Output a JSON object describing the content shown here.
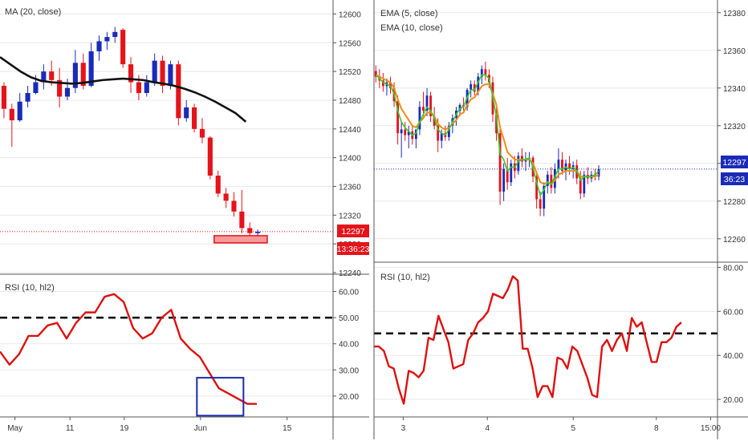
{
  "colors": {
    "bull": "#1a2bb8",
    "bear": "#e5131a",
    "ma": "#111111",
    "ema_fast": "#33cc33",
    "ema_slow": "#f08c1a",
    "rsi": "#dd1111",
    "price_line_left": "#e5131a",
    "price_line_right": "#1a2bb8",
    "highlight_box": "#1a2ba8",
    "grid": "#e8e8e8",
    "axis_text": "#333333"
  },
  "chart_data": [
    {
      "type": "candlestick",
      "panel": "left-price",
      "indicator_label": "MA (20, close)",
      "y_ticks": [
        "12600",
        "12560",
        "12520",
        "12480",
        "12440",
        "12400",
        "12360",
        "12320",
        "12280",
        "12240"
      ],
      "ylim": [
        12240,
        12615
      ],
      "xlim": [
        0,
        42
      ],
      "candles": [
        {
          "o": 12500,
          "h": 12505,
          "l": 12455,
          "c": 12468
        },
        {
          "o": 12468,
          "h": 12475,
          "l": 12415,
          "c": 12452
        },
        {
          "o": 12452,
          "h": 12490,
          "l": 12450,
          "c": 12478
        },
        {
          "o": 12478,
          "h": 12500,
          "l": 12470,
          "c": 12490
        },
        {
          "o": 12490,
          "h": 12515,
          "l": 12488,
          "c": 12505
        },
        {
          "o": 12505,
          "h": 12530,
          "l": 12495,
          "c": 12520
        },
        {
          "o": 12520,
          "h": 12535,
          "l": 12500,
          "c": 12508
        },
        {
          "o": 12508,
          "h": 12525,
          "l": 12470,
          "c": 12485
        },
        {
          "o": 12485,
          "h": 12510,
          "l": 12480,
          "c": 12497
        },
        {
          "o": 12497,
          "h": 12550,
          "l": 12490,
          "c": 12532
        },
        {
          "o": 12532,
          "h": 12545,
          "l": 12495,
          "c": 12500
        },
        {
          "o": 12500,
          "h": 12560,
          "l": 12498,
          "c": 12548
        },
        {
          "o": 12548,
          "h": 12570,
          "l": 12535,
          "c": 12562
        },
        {
          "o": 12562,
          "h": 12575,
          "l": 12550,
          "c": 12568
        },
        {
          "o": 12568,
          "h": 12582,
          "l": 12560,
          "c": 12575
        },
        {
          "o": 12578,
          "h": 12580,
          "l": 12525,
          "c": 12530
        },
        {
          "o": 12530,
          "h": 12540,
          "l": 12490,
          "c": 12505
        },
        {
          "o": 12505,
          "h": 12515,
          "l": 12480,
          "c": 12490
        },
        {
          "o": 12490,
          "h": 12515,
          "l": 12485,
          "c": 12505
        },
        {
          "o": 12505,
          "h": 12545,
          "l": 12500,
          "c": 12535
        },
        {
          "o": 12535,
          "h": 12542,
          "l": 12490,
          "c": 12500
        },
        {
          "o": 12500,
          "h": 12535,
          "l": 12495,
          "c": 12530
        },
        {
          "o": 12530,
          "h": 12535,
          "l": 12445,
          "c": 12455
        },
        {
          "o": 12455,
          "h": 12480,
          "l": 12450,
          "c": 12470
        },
        {
          "o": 12470,
          "h": 12475,
          "l": 12435,
          "c": 12440
        },
        {
          "o": 12440,
          "h": 12455,
          "l": 12420,
          "c": 12428
        },
        {
          "o": 12428,
          "h": 12430,
          "l": 12370,
          "c": 12375
        },
        {
          "o": 12375,
          "h": 12382,
          "l": 12345,
          "c": 12350
        },
        {
          "o": 12350,
          "h": 12358,
          "l": 12330,
          "c": 12340
        },
        {
          "o": 12340,
          "h": 12352,
          "l": 12318,
          "c": 12325
        },
        {
          "o": 12325,
          "h": 12355,
          "l": 12295,
          "c": 12302
        },
        {
          "o": 12302,
          "h": 12310,
          "l": 12283,
          "c": 12295
        },
        {
          "o": 12295,
          "h": 12300,
          "l": 12290,
          "c": 12297
        }
      ],
      "ma": [
        12540,
        12530,
        12520,
        12512,
        12507,
        12505,
        12504,
        12503,
        12504,
        12506,
        12508,
        12509,
        12510,
        12509,
        12508,
        12505,
        12503,
        12500,
        12496,
        12491,
        12485,
        12478,
        12470,
        12462,
        12450
      ],
      "last_price": "12297",
      "countdown": "13:36:23"
    },
    {
      "type": "line",
      "panel": "left-rsi",
      "indicator_label": "RSI (10, hl2)",
      "y_ticks": [
        "60.00",
        "50.00",
        "40.00",
        "30.00",
        "20.00"
      ],
      "ylim": [
        12,
        66
      ],
      "level": 50,
      "values": [
        37,
        32,
        36,
        43,
        43,
        47,
        48,
        42,
        48,
        52,
        52,
        58,
        59,
        56,
        46,
        42,
        44,
        50,
        53,
        42,
        38,
        35,
        29,
        23,
        21,
        19,
        17,
        17
      ],
      "x_ticks": [
        "May",
        "11",
        "19",
        "Jun",
        "15"
      ]
    },
    {
      "type": "candlestick",
      "panel": "right-price",
      "indicator_label_1": "EMA (5, close)",
      "indicator_label_2": "EMA (10, close)",
      "y_ticks": [
        "12380",
        "12360",
        "12340",
        "12320",
        "12300",
        "12280",
        "12260"
      ],
      "ylim": [
        12248,
        12385
      ],
      "xlim": [
        0,
        94
      ],
      "candles": [
        {
          "o": 12349,
          "h": 12352,
          "l": 12343,
          "c": 12346
        },
        {
          "o": 12346,
          "h": 12350,
          "l": 12340,
          "c": 12344
        },
        {
          "o": 12344,
          "h": 12348,
          "l": 12338,
          "c": 12341
        },
        {
          "o": 12341,
          "h": 12345,
          "l": 12336,
          "c": 12343
        },
        {
          "o": 12343,
          "h": 12346,
          "l": 12337,
          "c": 12340
        },
        {
          "o": 12340,
          "h": 12343,
          "l": 12330,
          "c": 12333
        },
        {
          "o": 12333,
          "h": 12336,
          "l": 12310,
          "c": 12316
        },
        {
          "o": 12316,
          "h": 12322,
          "l": 12303,
          "c": 12318
        },
        {
          "o": 12318,
          "h": 12322,
          "l": 12312,
          "c": 12315
        },
        {
          "o": 12315,
          "h": 12320,
          "l": 12308,
          "c": 12317
        },
        {
          "o": 12317,
          "h": 12320,
          "l": 12310,
          "c": 12313
        },
        {
          "o": 12313,
          "h": 12318,
          "l": 12308,
          "c": 12318
        },
        {
          "o": 12318,
          "h": 12333,
          "l": 12315,
          "c": 12330
        },
        {
          "o": 12330,
          "h": 12338,
          "l": 12325,
          "c": 12328
        },
        {
          "o": 12328,
          "h": 12340,
          "l": 12325,
          "c": 12336
        },
        {
          "o": 12336,
          "h": 12338,
          "l": 12322,
          "c": 12325
        },
        {
          "o": 12325,
          "h": 12330,
          "l": 12318,
          "c": 12320
        },
        {
          "o": 12320,
          "h": 12324,
          "l": 12306,
          "c": 12312
        },
        {
          "o": 12312,
          "h": 12318,
          "l": 12308,
          "c": 12316
        },
        {
          "o": 12316,
          "h": 12320,
          "l": 12312,
          "c": 12314
        },
        {
          "o": 12314,
          "h": 12322,
          "l": 12312,
          "c": 12320
        },
        {
          "o": 12320,
          "h": 12326,
          "l": 12316,
          "c": 12324
        },
        {
          "o": 12324,
          "h": 12330,
          "l": 12320,
          "c": 12328
        },
        {
          "o": 12328,
          "h": 12332,
          "l": 12325,
          "c": 12331
        },
        {
          "o": 12331,
          "h": 12335,
          "l": 12328,
          "c": 12330
        },
        {
          "o": 12330,
          "h": 12340,
          "l": 12328,
          "c": 12339
        },
        {
          "o": 12339,
          "h": 12344,
          "l": 12335,
          "c": 12342
        },
        {
          "o": 12342,
          "h": 12344,
          "l": 12336,
          "c": 12338
        },
        {
          "o": 12338,
          "h": 12348,
          "l": 12336,
          "c": 12346
        },
        {
          "o": 12346,
          "h": 12352,
          "l": 12342,
          "c": 12350
        },
        {
          "o": 12350,
          "h": 12354,
          "l": 12344,
          "c": 12347
        },
        {
          "o": 12347,
          "h": 12350,
          "l": 12340,
          "c": 12343
        },
        {
          "o": 12343,
          "h": 12346,
          "l": 12322,
          "c": 12326
        },
        {
          "o": 12326,
          "h": 12330,
          "l": 12312,
          "c": 12316
        },
        {
          "o": 12316,
          "h": 12320,
          "l": 12278,
          "c": 12285
        },
        {
          "o": 12285,
          "h": 12300,
          "l": 12280,
          "c": 12297
        },
        {
          "o": 12297,
          "h": 12303,
          "l": 12286,
          "c": 12290
        },
        {
          "o": 12290,
          "h": 12302,
          "l": 12288,
          "c": 12300
        },
        {
          "o": 12300,
          "h": 12304,
          "l": 12292,
          "c": 12296
        },
        {
          "o": 12296,
          "h": 12306,
          "l": 12294,
          "c": 12304
        },
        {
          "o": 12304,
          "h": 12308,
          "l": 12298,
          "c": 12301
        },
        {
          "o": 12301,
          "h": 12306,
          "l": 12296,
          "c": 12302
        },
        {
          "o": 12302,
          "h": 12306,
          "l": 12298,
          "c": 12303
        },
        {
          "o": 12303,
          "h": 12304,
          "l": 12290,
          "c": 12293
        },
        {
          "o": 12293,
          "h": 12296,
          "l": 12276,
          "c": 12281
        },
        {
          "o": 12281,
          "h": 12285,
          "l": 12272,
          "c": 12276
        },
        {
          "o": 12276,
          "h": 12290,
          "l": 12272,
          "c": 12288
        },
        {
          "o": 12288,
          "h": 12296,
          "l": 12284,
          "c": 12294
        },
        {
          "o": 12294,
          "h": 12298,
          "l": 12284,
          "c": 12287
        },
        {
          "o": 12287,
          "h": 12300,
          "l": 12284,
          "c": 12297
        },
        {
          "o": 12297,
          "h": 12308,
          "l": 12292,
          "c": 12302
        },
        {
          "o": 12302,
          "h": 12306,
          "l": 12294,
          "c": 12296
        },
        {
          "o": 12296,
          "h": 12302,
          "l": 12291,
          "c": 12300
        },
        {
          "o": 12300,
          "h": 12304,
          "l": 12294,
          "c": 12297
        },
        {
          "o": 12297,
          "h": 12301,
          "l": 12292,
          "c": 12299
        },
        {
          "o": 12299,
          "h": 12302,
          "l": 12289,
          "c": 12292
        },
        {
          "o": 12292,
          "h": 12296,
          "l": 12281,
          "c": 12284
        },
        {
          "o": 12284,
          "h": 12296,
          "l": 12282,
          "c": 12294
        },
        {
          "o": 12294,
          "h": 12298,
          "l": 12289,
          "c": 12292
        },
        {
          "o": 12292,
          "h": 12296,
          "l": 12290,
          "c": 12294
        },
        {
          "o": 12294,
          "h": 12297,
          "l": 12291,
          "c": 12293
        },
        {
          "o": 12293,
          "h": 12299,
          "l": 12291,
          "c": 12297
        }
      ],
      "ema5": [
        12347,
        12345,
        12343,
        12342,
        12341,
        12337,
        12328,
        12322,
        12319,
        12317,
        12315,
        12316,
        12322,
        12326,
        12330,
        12328,
        12324,
        12318,
        12316,
        12315,
        12318,
        12322,
        12326,
        12329,
        12330,
        12335,
        12339,
        12339,
        12343,
        12347,
        12347,
        12345,
        12335,
        12325,
        12305,
        12302,
        12296,
        12298,
        12298,
        12301,
        12302,
        12302,
        12303,
        12298,
        12290,
        12283,
        12286,
        12290,
        12289,
        12293,
        12297,
        12297,
        12298,
        12297,
        12298,
        12296,
        12291,
        12293,
        12293,
        12293,
        12294,
        12296
      ],
      "ema10": [
        12347,
        12346,
        12345,
        12344,
        12343,
        12340,
        12334,
        12329,
        12326,
        12323,
        12320,
        12319,
        12322,
        12324,
        12327,
        12327,
        12325,
        12321,
        12319,
        12318,
        12319,
        12321,
        12323,
        12326,
        12327,
        12331,
        12334,
        12335,
        12338,
        12341,
        12342,
        12342,
        12337,
        12331,
        12319,
        12313,
        12306,
        12304,
        12302,
        12302,
        12302,
        12302,
        12302,
        12300,
        12295,
        12290,
        12289,
        12290,
        12289,
        12291,
        12294,
        12295,
        12296,
        12296,
        12296,
        12296,
        12293,
        12293,
        12293,
        12293,
        12293,
        12294
      ],
      "last_price": "12297",
      "countdown": "36:23"
    },
    {
      "type": "line",
      "panel": "right-rsi",
      "indicator_label": "RSI (10, hl2)",
      "y_ticks": [
        "80.00",
        "60.00",
        "40.00",
        "20.00"
      ],
      "ylim": [
        12,
        82
      ],
      "level": 50,
      "values": [
        44,
        44,
        42,
        35,
        34,
        25,
        18,
        33,
        32,
        30,
        33,
        48,
        47,
        58,
        52,
        46,
        34,
        35,
        36,
        47,
        50,
        55,
        57,
        60,
        68,
        67,
        66,
        70,
        76,
        74,
        43,
        43,
        34,
        21,
        26,
        26,
        21,
        39,
        38,
        34,
        44,
        42,
        36,
        30,
        22,
        21,
        44,
        47,
        42,
        47,
        50,
        42,
        57,
        53,
        55,
        46,
        37,
        37,
        46,
        46,
        48,
        53,
        55
      ],
      "x_ticks": [
        "3",
        "4",
        "5",
        "8",
        "15:00"
      ]
    }
  ]
}
